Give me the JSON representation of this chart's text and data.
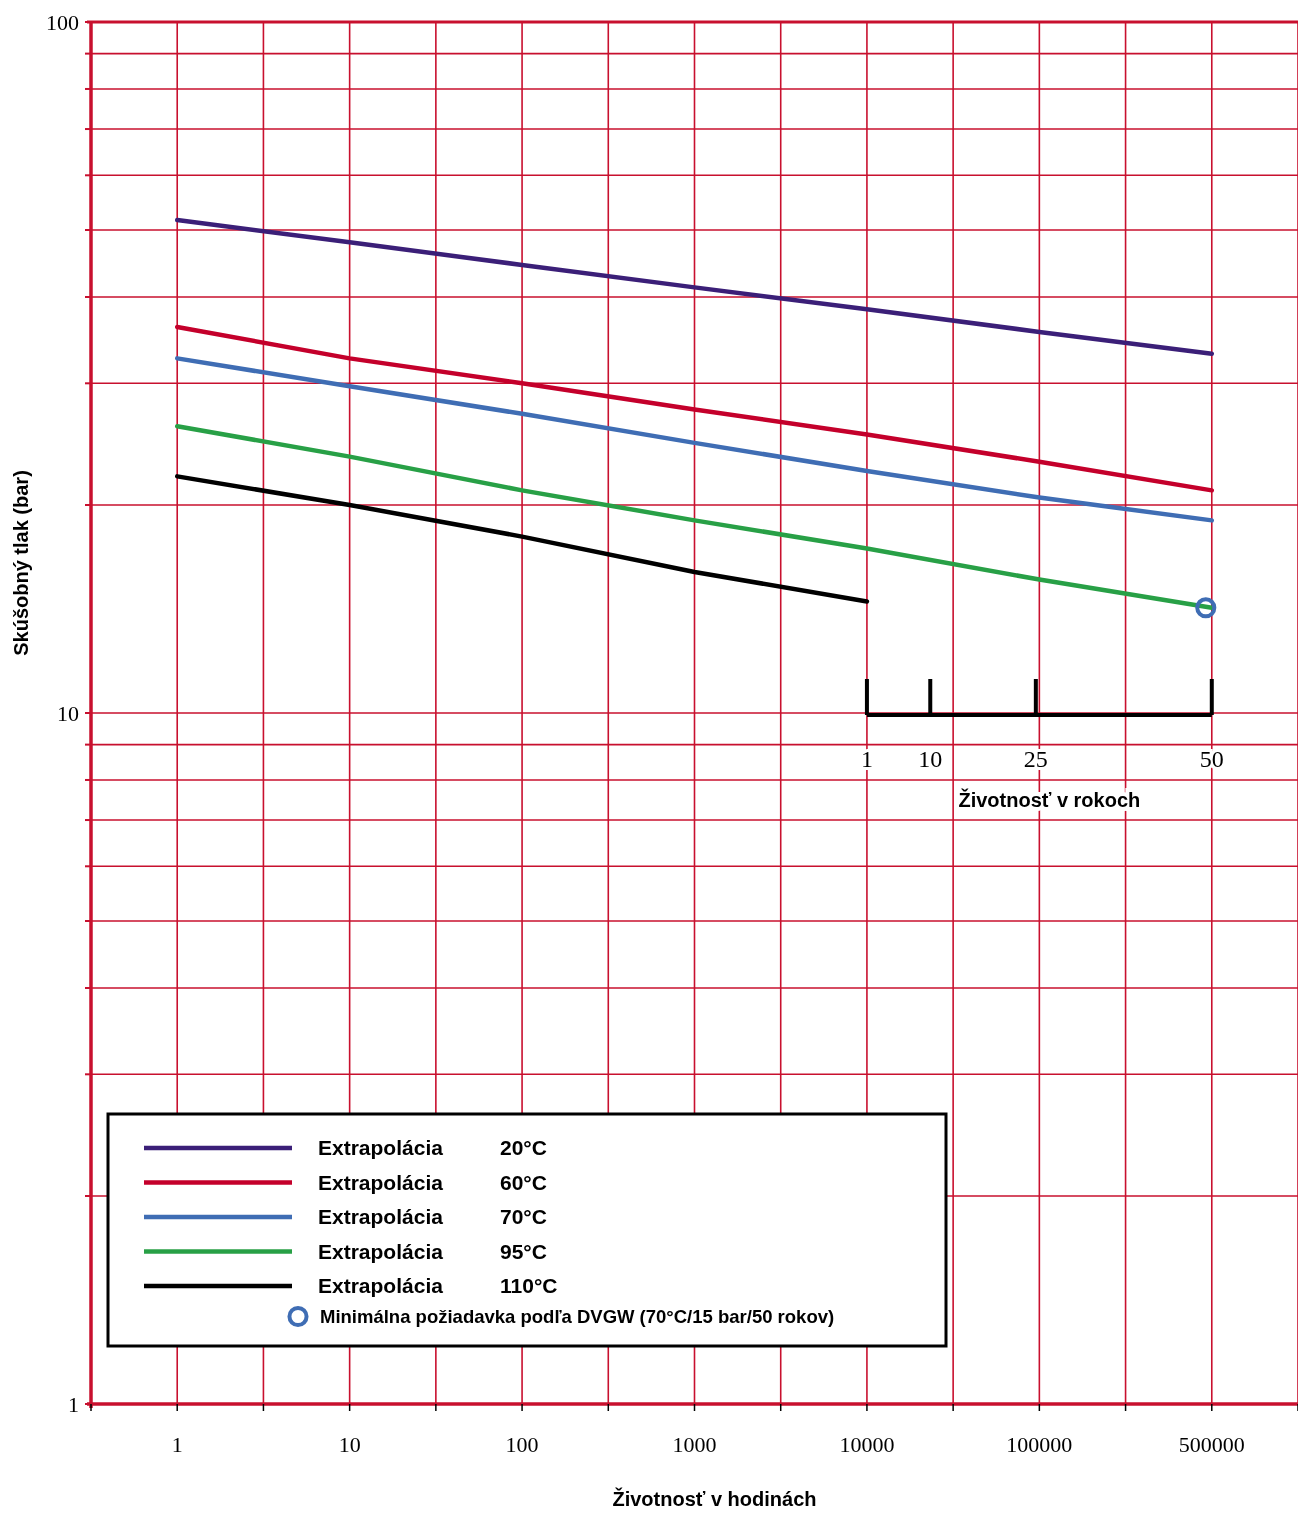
{
  "chart_data": {
    "type": "line",
    "xlabel": "Životnosť v hodinách",
    "ylabel": "Skúšobný tlak (bar)",
    "x2label": "Životnosť v rokoch",
    "categories": [
      "1",
      "10",
      "100",
      "1000",
      "10000",
      "100000",
      "500000"
    ],
    "series": [
      {
        "name": "Extrapolácia 20°C",
        "color": "#3b1f78",
        "values": [
          51.7,
          48.0,
          44.5,
          41.3,
          38.4,
          35.6,
          33.1
        ]
      },
      {
        "name": "Extrapolácia 60°C",
        "color": "#c4002b",
        "values": [
          36.2,
          32.6,
          30.0,
          27.5,
          25.3,
          23.1,
          21.0
        ]
      },
      {
        "name": "Extrapolácia 70°C",
        "color": "#3f6db4",
        "values": [
          32.6,
          29.7,
          27.1,
          24.6,
          22.4,
          20.5,
          19.0
        ]
      },
      {
        "name": "Extrapolácia 95°C",
        "color": "#28a046",
        "values": [
          26.0,
          23.5,
          21.0,
          19.0,
          17.3,
          15.6,
          14.2
        ]
      },
      {
        "name": "Extrapolácia 110°C",
        "color": "#000000",
        "values": [
          22.0,
          20.0,
          18.0,
          16.0,
          14.5,
          null,
          null
        ]
      },
      {
        "name": "Minimálna požiadavka podľa DVGW (70°C/15 bar/50 rokov)",
        "type": "scatter",
        "marker": "circle",
        "color": "#3f6db4",
        "x": [
          "500000"
        ],
        "values": [
          14.2
        ]
      }
    ],
    "log": "y",
    "ylim": [
      1,
      100
    ],
    "yticks": [
      1,
      {
        "value": 2,
        "label": null
      },
      {
        "value": 3,
        "label": null
      },
      {
        "value": 4,
        "label": null
      },
      {
        "value": 5,
        "label": null
      },
      {
        "value": 6,
        "label": null
      },
      {
        "value": 7,
        "label": null
      },
      {
        "value": 8,
        "label": null
      },
      {
        "value": 9,
        "label": null
      },
      10,
      {
        "value": 20,
        "label": null
      },
      {
        "value": 30,
        "label": null
      },
      {
        "value": 40,
        "label": null
      },
      {
        "value": 50,
        "label": null
      },
      {
        "value": 60,
        "label": null
      },
      {
        "value": 70,
        "label": null
      },
      {
        "value": 80,
        "label": null
      },
      {
        "value": 90,
        "label": null
      },
      100
    ],
    "x2lim": [
      1,
      50
    ],
    "x2ticks": [
      1,
      10,
      25,
      50
    ],
    "grid": true,
    "legend": "bottom left"
  }
}
